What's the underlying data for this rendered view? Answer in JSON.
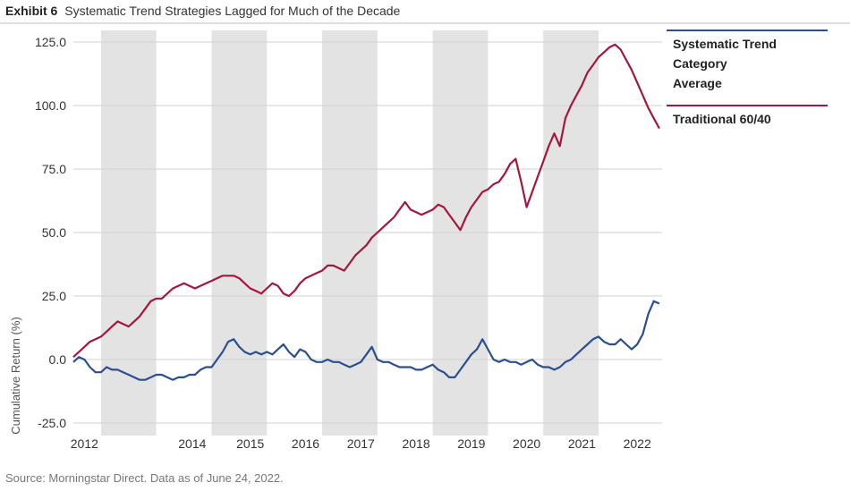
{
  "header": {
    "exhibit_label": "Exhibit 6",
    "title": "Systematic Trend Strategies Lagged for Much of the Decade"
  },
  "footer": {
    "source": "Source: Morningstar Direct.  Data as of June 24, 2022."
  },
  "chart_data": {
    "type": "line",
    "title": "Systematic Trend Strategies Lagged for Much of the Decade",
    "xlabel": "",
    "ylabel": "Cumulative Return (%)",
    "ylim": [
      -25,
      125
    ],
    "yticks": [
      -25,
      0,
      25,
      50,
      75,
      100,
      125
    ],
    "ytick_labels": [
      "-25.0",
      "0.0",
      "25.0",
      "50.0",
      "75.0",
      "100.0",
      "125.0"
    ],
    "xlim": [
      2011.8,
      2022.45
    ],
    "xtick_values": [
      2012.0,
      2013.95,
      2015.0,
      2016.0,
      2017.0,
      2018.0,
      2019.0,
      2020.0,
      2021.0,
      2022.0
    ],
    "xtick_labels": [
      "2012",
      "2014",
      "2015",
      "2016",
      "2017",
      "2018",
      "2019",
      "2020",
      "2021",
      "2022"
    ],
    "grid": "horizontal",
    "shaded_bands": [
      [
        2012.3,
        2013.3
      ],
      [
        2014.3,
        2015.3
      ],
      [
        2016.3,
        2017.3
      ],
      [
        2018.3,
        2019.3
      ],
      [
        2020.3,
        2021.3
      ]
    ],
    "legend_position": "right",
    "series": [
      {
        "name": "Systematic Trend Category Average",
        "legend_lines": [
          "Systematic Trend",
          "Category",
          "Average"
        ],
        "color": "#2a4f91",
        "x": [
          2011.8,
          2011.9,
          2012.0,
          2012.1,
          2012.2,
          2012.3,
          2012.4,
          2012.5,
          2012.6,
          2012.7,
          2012.8,
          2012.9,
          2013.0,
          2013.1,
          2013.2,
          2013.3,
          2013.4,
          2013.5,
          2013.6,
          2013.7,
          2013.8,
          2013.9,
          2014.0,
          2014.1,
          2014.2,
          2014.3,
          2014.4,
          2014.5,
          2014.6,
          2014.7,
          2014.8,
          2014.9,
          2015.0,
          2015.1,
          2015.2,
          2015.3,
          2015.4,
          2015.5,
          2015.6,
          2015.7,
          2015.8,
          2015.9,
          2016.0,
          2016.1,
          2016.2,
          2016.3,
          2016.4,
          2016.5,
          2016.6,
          2016.7,
          2016.8,
          2016.9,
          2017.0,
          2017.1,
          2017.2,
          2017.3,
          2017.4,
          2017.5,
          2017.6,
          2017.7,
          2017.8,
          2017.9,
          2018.0,
          2018.1,
          2018.2,
          2018.3,
          2018.4,
          2018.5,
          2018.6,
          2018.7,
          2018.8,
          2018.9,
          2019.0,
          2019.1,
          2019.2,
          2019.3,
          2019.4,
          2019.5,
          2019.6,
          2019.7,
          2019.8,
          2019.9,
          2020.0,
          2020.1,
          2020.2,
          2020.3,
          2020.4,
          2020.5,
          2020.6,
          2020.7,
          2020.8,
          2020.9,
          2021.0,
          2021.1,
          2021.2,
          2021.3,
          2021.4,
          2021.5,
          2021.6,
          2021.7,
          2021.8,
          2021.9,
          2022.0,
          2022.1,
          2022.2,
          2022.3,
          2022.4
        ],
        "values": [
          -1,
          1,
          0,
          -3,
          -5,
          -5,
          -3,
          -4,
          -4,
          -5,
          -6,
          -7,
          -8,
          -8,
          -7,
          -6,
          -6,
          -7,
          -8,
          -7,
          -7,
          -6,
          -6,
          -4,
          -3,
          -3,
          0,
          3,
          7,
          8,
          5,
          3,
          2,
          3,
          2,
          3,
          2,
          4,
          6,
          3,
          1,
          4,
          3,
          0,
          -1,
          -1,
          0,
          -1,
          -1,
          -2,
          -3,
          -2,
          -1,
          2,
          5,
          0,
          -1,
          -1,
          -2,
          -3,
          -3,
          -3,
          -4,
          -4,
          -3,
          -2,
          -4,
          -5,
          -7,
          -7,
          -4,
          -1,
          2,
          4,
          8,
          4,
          0,
          -1,
          0,
          -1,
          -1,
          -2,
          -1,
          0,
          -2,
          -3,
          -3,
          -4,
          -3,
          -1,
          0,
          2,
          4,
          6,
          8,
          9,
          7,
          6,
          6,
          8,
          6,
          4,
          6,
          10,
          18,
          23,
          22
        ]
      },
      {
        "name": "Traditional 60/40",
        "legend_lines": [
          "Traditional 60/40"
        ],
        "color": "#a3173f",
        "x": [
          2011.8,
          2011.9,
          2012.0,
          2012.1,
          2012.2,
          2012.3,
          2012.4,
          2012.5,
          2012.6,
          2012.7,
          2012.8,
          2012.9,
          2013.0,
          2013.1,
          2013.2,
          2013.3,
          2013.4,
          2013.5,
          2013.6,
          2013.7,
          2013.8,
          2013.9,
          2014.0,
          2014.1,
          2014.2,
          2014.3,
          2014.4,
          2014.5,
          2014.6,
          2014.7,
          2014.8,
          2014.9,
          2015.0,
          2015.1,
          2015.2,
          2015.3,
          2015.4,
          2015.5,
          2015.6,
          2015.7,
          2015.8,
          2015.9,
          2016.0,
          2016.1,
          2016.2,
          2016.3,
          2016.4,
          2016.5,
          2016.6,
          2016.7,
          2016.8,
          2016.9,
          2017.0,
          2017.1,
          2017.2,
          2017.3,
          2017.4,
          2017.5,
          2017.6,
          2017.7,
          2017.8,
          2017.9,
          2018.0,
          2018.1,
          2018.2,
          2018.3,
          2018.4,
          2018.5,
          2018.6,
          2018.7,
          2018.8,
          2018.9,
          2019.0,
          2019.1,
          2019.2,
          2019.3,
          2019.4,
          2019.5,
          2019.6,
          2019.7,
          2019.8,
          2019.9,
          2020.0,
          2020.1,
          2020.2,
          2020.3,
          2020.4,
          2020.5,
          2020.6,
          2020.7,
          2020.8,
          2020.9,
          2021.0,
          2021.1,
          2021.2,
          2021.3,
          2021.4,
          2021.5,
          2021.6,
          2021.7,
          2021.8,
          2021.9,
          2022.0,
          2022.1,
          2022.2,
          2022.3,
          2022.4
        ],
        "values": [
          1,
          3,
          5,
          7,
          8,
          9,
          11,
          13,
          15,
          14,
          13,
          15,
          17,
          20,
          23,
          24,
          24,
          26,
          28,
          29,
          30,
          29,
          28,
          29,
          30,
          31,
          32,
          33,
          33,
          33,
          32,
          30,
          28,
          27,
          26,
          28,
          30,
          29,
          26,
          25,
          27,
          30,
          32,
          33,
          34,
          35,
          37,
          37,
          36,
          35,
          38,
          41,
          43,
          45,
          48,
          50,
          52,
          54,
          56,
          59,
          62,
          59,
          58,
          57,
          58,
          59,
          61,
          60,
          57,
          54,
          51,
          56,
          60,
          63,
          66,
          67,
          69,
          70,
          73,
          77,
          79,
          70,
          60,
          66,
          72,
          78,
          84,
          89,
          84,
          95,
          100,
          104,
          108,
          113,
          116,
          119,
          121,
          123,
          124,
          122,
          118,
          114,
          109,
          104,
          99,
          95,
          91
        ]
      }
    ]
  }
}
